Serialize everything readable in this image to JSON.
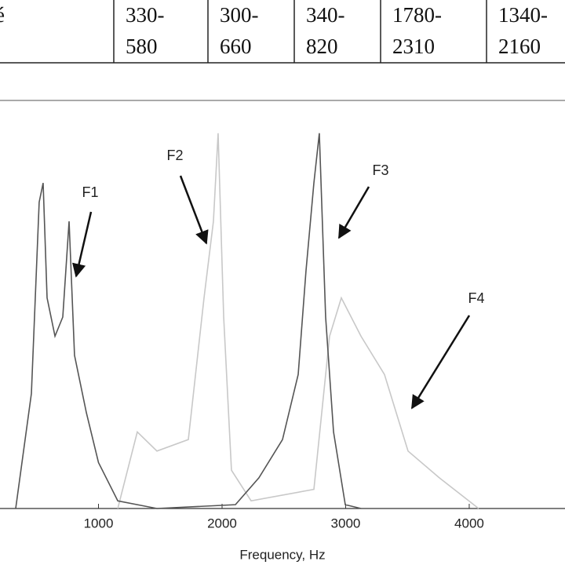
{
  "table": {
    "rows": [
      [
        [
          "é"
        ],
        [
          "330-",
          "580"
        ],
        [
          "300-",
          "660"
        ],
        [
          "340-",
          "820"
        ],
        [
          "1780-",
          "2310"
        ],
        [
          "1340-",
          "2160"
        ]
      ]
    ]
  },
  "chart_data": {
    "type": "line",
    "x_label": "Frequency, Hz",
    "xlim": [
      203,
      4775
    ],
    "ylim": [
      0,
      1
    ],
    "xticks": [
      1000,
      2000,
      3000,
      4000
    ],
    "series": [
      {
        "color": "#555555",
        "x": [
          330,
          457,
          520,
          552,
          584,
          648,
          711,
          762,
          806,
          902,
          1000,
          1156,
          1473,
          2108,
          2298,
          2489,
          2616,
          2679,
          2743,
          2787,
          2838,
          2902,
          2997,
          3124
        ],
        "values": [
          0,
          0.3,
          0.8,
          0.85,
          0.55,
          0.45,
          0.5,
          0.75,
          0.4,
          0.25,
          0.12,
          0.02,
          0,
          0.01,
          0.08,
          0.18,
          0.35,
          0.62,
          0.85,
          0.98,
          0.5,
          0.2,
          0.01,
          0
        ]
      },
      {
        "color": "#c8c8c8",
        "x": [
          1156,
          1314,
          1473,
          1727,
          1854,
          1930,
          1968,
          2013,
          2076,
          2235,
          2743,
          2870,
          2965,
          3124,
          3314,
          3505,
          3759,
          4076
        ],
        "values": [
          0,
          0.2,
          0.15,
          0.18,
          0.55,
          0.75,
          0.98,
          0.5,
          0.1,
          0.02,
          0.05,
          0.45,
          0.55,
          0.45,
          0.35,
          0.15,
          0.08,
          0
        ]
      }
    ],
    "annotations": [
      "F1",
      "F2",
      "F3",
      "F4"
    ]
  }
}
